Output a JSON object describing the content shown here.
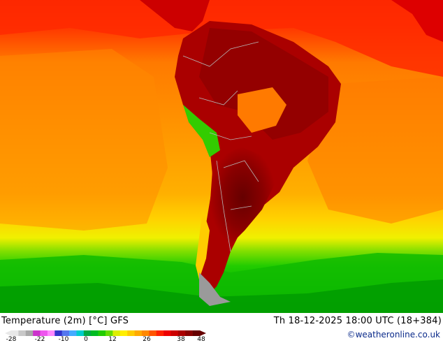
{
  "map": {
    "title": "Temperature (2m) [°C] GFS",
    "datetime": "Th 18-12-2025 18:00 UTC (18+384)",
    "credit": "©weatheronline.co.uk"
  },
  "legend": {
    "ticks": [
      "-28",
      "-22",
      "-10",
      "0",
      "12",
      "26",
      "38",
      "48"
    ],
    "colors": [
      "#e8e8e8",
      "#c8c8c8",
      "#a8a8a8",
      "#cc33cc",
      "#ee55ee",
      "#ff88ff",
      "#3333cc",
      "#5577ee",
      "#44aaff",
      "#00cccc",
      "#00aa44",
      "#00bb22",
      "#22cc00",
      "#66dd00",
      "#ddee00",
      "#ffee00",
      "#ffcc00",
      "#ffaa00",
      "#ff8800",
      "#ff5500",
      "#ff2200",
      "#ee0000",
      "#cc0000",
      "#aa0000",
      "#880000",
      "#660000"
    ]
  }
}
